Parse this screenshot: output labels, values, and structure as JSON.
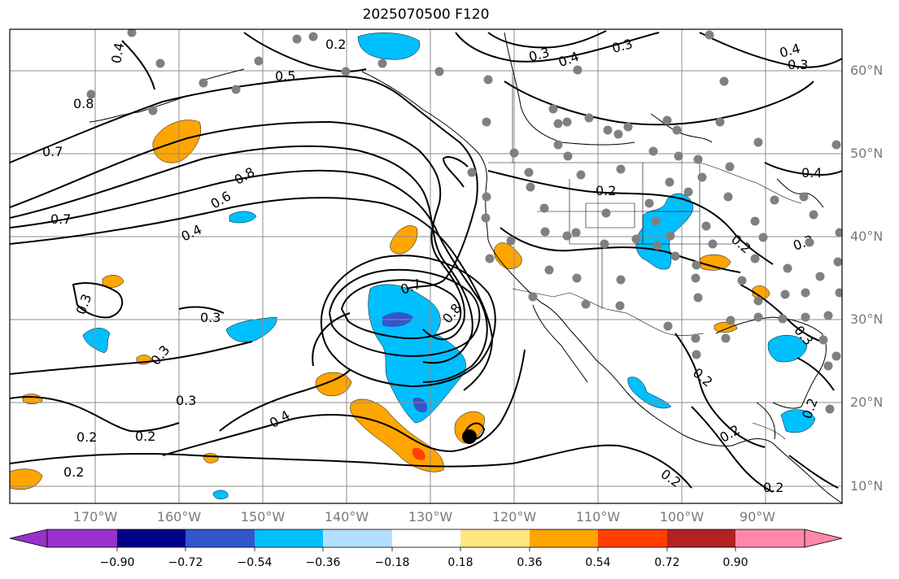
{
  "title": "2025070500 F120",
  "map": {
    "lat_labels": [
      "60°N",
      "50°N",
      "40°N",
      "30°N",
      "20°N",
      "10°N"
    ],
    "lon_labels": [
      "170°W",
      "160°W",
      "150°W",
      "140°W",
      "130°W",
      "120°W",
      "110°W",
      "100°W",
      "90°W"
    ],
    "contour_labels": [
      "0.2",
      "0.3",
      "0.4",
      "0.5",
      "0.6",
      "0.7",
      "0.8"
    ],
    "contour_color": "#000000",
    "station_marker_color": "#808080",
    "grid_color": "#8c8c8c"
  },
  "colorbar": {
    "tick_labels": [
      "−0.90",
      "−0.72",
      "−0.54",
      "−0.36",
      "−0.18",
      "0.18",
      "0.36",
      "0.54",
      "0.72",
      "0.90"
    ],
    "colors": [
      "#9932cc",
      "#00008b",
      "#3355cc",
      "#00bfff",
      "#b3e0ff",
      "#ffffff",
      "#ffe680",
      "#ffa500",
      "#ff4000",
      "#b22222",
      "#ff88aa"
    ],
    "extend": "both"
  }
}
